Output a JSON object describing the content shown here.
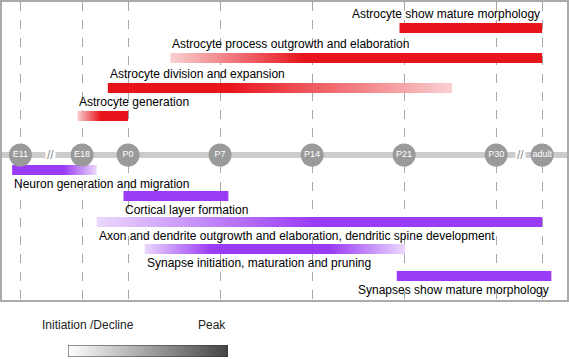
{
  "chart_data": {
    "type": "timeline",
    "xlim": [
      -1.37,
      4.77
    ],
    "xticks": [
      {
        "value": -1.17,
        "label": "E11"
      },
      {
        "value": -0.5,
        "label": "E18"
      },
      {
        "value": 0,
        "label": "P0"
      },
      {
        "value": 1,
        "label": "P7"
      },
      {
        "value": 2,
        "label": "P14"
      },
      {
        "value": 3,
        "label": "P21"
      },
      {
        "value": 4,
        "label": "P30"
      },
      {
        "value": 4.5,
        "label": "adult"
      }
    ],
    "grid": true,
    "axis_breaks": [
      {
        "x": -0.84,
        "label": "//"
      },
      {
        "x": 4.26,
        "label": "//"
      }
    ],
    "series": [
      {
        "name": "Astrocyte show mature morphology",
        "color": "#e8141c",
        "start": 2.95,
        "end": 4.5,
        "peak": [
          2.95,
          4.5
        ]
      },
      {
        "name": "Astrocyte process outgrowth and elaboration",
        "color": "#e8141c",
        "start": 0.46,
        "end": 4.5,
        "peak": [
          1.9,
          4.5
        ]
      },
      {
        "name": "Astrocyte division and expansion",
        "color": "#e8141c",
        "start": -0.22,
        "end": 3.52,
        "peak": [
          -0.22,
          1.1
        ]
      },
      {
        "name": "Astrocyte generation",
        "color": "#e8141c",
        "start": -0.55,
        "end": 0,
        "peak": [
          -0.3,
          0
        ]
      },
      {
        "name": "Neuron generation and migration",
        "color": "#9a3cf5",
        "start": -1.26,
        "end": -0.34,
        "peak": [
          -1.26,
          -0.7
        ]
      },
      {
        "name": "Cortical layer formation",
        "color": "#9a3cf5",
        "start": -0.05,
        "end": 1.09,
        "peak": [
          -0.05,
          1.09
        ]
      },
      {
        "name": "Axon and dendrite outgrowth and elaboration, dendritic spine development",
        "color": "#9a3cf5",
        "start": -0.34,
        "end": 4.5,
        "peak": [
          2.0,
          4.5
        ]
      },
      {
        "name": "Synapse initiation, maturation and pruning",
        "color": "#9a3cf5",
        "start": 0.18,
        "end": 3.01,
        "peak": [
          0.9,
          2.2
        ]
      },
      {
        "name": "Synapses show mature morphology",
        "color": "#9a3cf5",
        "start": 2.92,
        "end": 4.6,
        "peak": [
          2.92,
          4.6
        ]
      }
    ],
    "intensity_legend": {
      "low": "Initiation /Decline",
      "high": "Peak"
    }
  }
}
